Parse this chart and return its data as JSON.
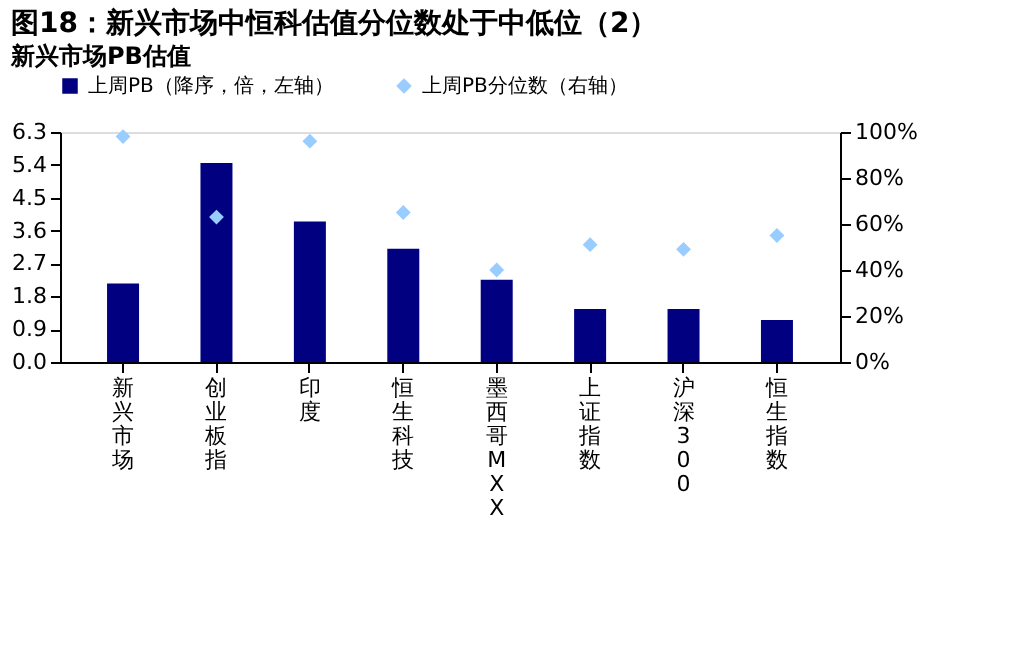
{
  "chart_data": {
    "type": "bar",
    "title": "图18：新兴市场中恒科估值分位数处于中低位（2）",
    "subtitle": "新兴市场PB估值",
    "categories": [
      "新兴市场",
      "创业板指",
      "印度",
      "恒生科技",
      "墨西哥MXX",
      "上证指数",
      "沪深300",
      "恒生指数"
    ],
    "series": [
      {
        "name": "上周PB（降序，倍，左轴）",
        "color": "#000080",
        "values": [
          2.15,
          5.45,
          3.85,
          3.1,
          2.25,
          1.45,
          1.45,
          1.15
        ]
      },
      {
        "name": "上周PB分位数（右轴）",
        "type": "scatter",
        "marker": "diamond",
        "axis": "y2",
        "color": "#99ccff",
        "values": [
          98,
          63,
          96,
          65,
          40,
          51,
          49,
          55
        ]
      }
    ],
    "ylim": [
      0,
      6.3
    ],
    "yticks": [
      {
        "value": 0,
        "label": "0.0"
      },
      {
        "value": 0.9,
        "label": "0.9"
      },
      {
        "value": 1.8,
        "label": "1.8"
      },
      {
        "value": 2.7,
        "label": "2.7"
      },
      {
        "value": 3.6,
        "label": "3.6"
      },
      {
        "value": 4.5,
        "label": "4.5"
      },
      {
        "value": 5.4,
        "label": "5.4"
      },
      {
        "value": 6.3,
        "label": "6.3"
      }
    ],
    "y2lim": [
      0,
      100
    ],
    "y2ticks": [
      {
        "value": 0,
        "label": "0%"
      },
      {
        "value": 20,
        "label": "20%"
      },
      {
        "value": 40,
        "label": "40%"
      },
      {
        "value": 60,
        "label": "60%"
      },
      {
        "value": 80,
        "label": "80%"
      },
      {
        "value": 100,
        "label": "100%"
      }
    ],
    "legend": "top",
    "grid": false
  }
}
